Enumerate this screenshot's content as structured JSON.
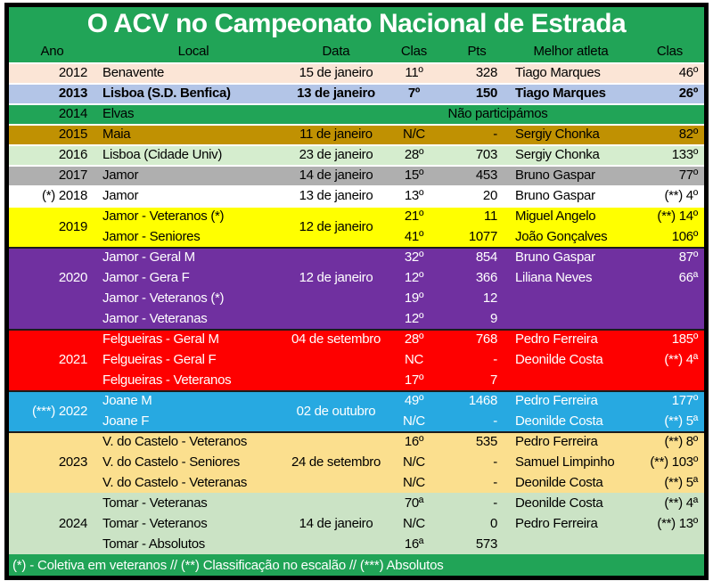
{
  "title": "O ACV no Campeonato Nacional de Estrada",
  "columns": [
    "Ano",
    "Local",
    "Data",
    "Clas",
    "Pts",
    "Melhor atleta",
    "Clas"
  ],
  "footer": "(*) - Coletiva em veteranos // (**) Classificação no escalão // (***) Absolutos",
  "colors": {
    "frame_border": "#000000",
    "band_green": "#21A457",
    "title_text": "#FFFFFF",
    "header_text": "#000000",
    "separator_light": "#FFFFFF",
    "separator_dark": "#1C1C1C"
  },
  "blocks": [
    {
      "year": "2012",
      "bg": "#FBE5D6",
      "fg": "#000000",
      "bold": false,
      "sep": "#FFFFFF",
      "year_pos": 0,
      "date": "15 de janeiro",
      "date_pos": 0,
      "rows": [
        {
          "local": "Benavente",
          "clas": "11º",
          "pts": "328",
          "atleta": "Tiago Marques",
          "clas2": "46º"
        }
      ]
    },
    {
      "year": "2013",
      "bg": "#B3C5E7",
      "fg": "#000000",
      "bold": true,
      "sep": "#FFFFFF",
      "year_pos": 0,
      "date": "13 de janeiro",
      "date_pos": 0,
      "rows": [
        {
          "local": "Lisboa (S.D. Benfica)",
          "clas": "7º",
          "pts": "150",
          "atleta": "Tiago Marques",
          "clas2": "26º"
        }
      ]
    },
    {
      "year": "2014",
      "bg": "#21A457",
      "fg": "#000000",
      "bold": false,
      "sep": "#FFFFFF",
      "year_pos": 0,
      "date": "",
      "date_pos": 0,
      "note": "Não participámos",
      "rows": [
        {
          "local": "Elvas"
        }
      ]
    },
    {
      "year": "2015",
      "bg": "#C09102",
      "fg": "#000000",
      "bold": false,
      "sep": "#FFFFFF",
      "year_pos": 0,
      "date": "11 de janeiro",
      "date_pos": 0,
      "rows": [
        {
          "local": "Maia",
          "clas": "N/C",
          "pts": "-",
          "atleta": "Sergiy Chonka",
          "clas2": "82º"
        }
      ]
    },
    {
      "year": "2016",
      "bg": "#D5EDCE",
      "fg": "#000000",
      "bold": false,
      "sep": "#FFFFFF",
      "year_pos": 0,
      "date": "23 de janeiro",
      "date_pos": 0,
      "rows": [
        {
          "local": "Lisboa (Cidade Univ)",
          "clas": "28º",
          "pts": "703",
          "atleta": "Sergiy Chonka",
          "clas2": "133º"
        }
      ]
    },
    {
      "year": "2017",
      "bg": "#AFAFAF",
      "fg": "#000000",
      "bold": false,
      "sep": "#FFFFFF",
      "year_pos": 0,
      "date": "14 de janeiro",
      "date_pos": 0,
      "rows": [
        {
          "local": "Jamor",
          "clas": "15º",
          "pts": "453",
          "atleta": "Bruno Gaspar",
          "clas2": "77º"
        }
      ]
    },
    {
      "year": "(*) 2018",
      "bg": "#FFFFFF",
      "fg": "#000000",
      "bold": false,
      "sep": "#FFFFFF",
      "year_pos": 0,
      "date": "13 de janeiro",
      "date_pos": 0,
      "rows": [
        {
          "local": "Jamor",
          "clas": "13º",
          "pts": "20",
          "atleta": "Bruno Gaspar",
          "clas2": "(**) 4º"
        }
      ]
    },
    {
      "year": "2019",
      "bg": "#FFFF00",
      "fg": "#000000",
      "bold": false,
      "sep": "#FFFFFF",
      "year_pos": "center",
      "date": "12 de janeiro",
      "date_pos": "center",
      "rows": [
        {
          "local": "Jamor - Veteranos (*)",
          "clas": "21º",
          "pts": "11",
          "atleta": "Miguel Angelo",
          "clas2": "(**) 14º"
        },
        {
          "local": "Jamor - Seniores",
          "clas": "41º",
          "pts": "1077",
          "atleta": "João Gonçalves",
          "clas2": "106º"
        }
      ]
    },
    {
      "year": "2020",
      "bg": "#7030A0",
      "fg": "#FFFFFF",
      "bold": false,
      "sep": "#1C1C1C",
      "year_pos": 1,
      "date": "12 de janeiro",
      "date_pos": 1,
      "rows": [
        {
          "local": "Jamor - Geral M",
          "clas": "32º",
          "pts": "854",
          "atleta": "Bruno Gaspar",
          "clas2": "87º"
        },
        {
          "local": "Jamor - Gera F",
          "clas": "12º",
          "pts": "366",
          "atleta": "Liliana Neves",
          "clas2": "66ª"
        },
        {
          "local": "Jamor - Veteranos (*)",
          "clas": "19º",
          "pts": "12"
        },
        {
          "local": "Jamor - Veteranas",
          "clas": "12º",
          "pts": "9"
        }
      ]
    },
    {
      "year": "2021",
      "bg": "#FE0000",
      "fg": "#FFFFFF",
      "bold": false,
      "sep": "#1C1C1C",
      "year_pos": 1,
      "date": "04 de setembro",
      "date_pos": 0,
      "rows": [
        {
          "local": "Felgueiras - Geral M",
          "clas": "28º",
          "pts": "768",
          "atleta": "Pedro Ferreira",
          "clas2": "185º"
        },
        {
          "local": "Felgueiras - Geral F",
          "clas": "NC",
          "pts": "-",
          "atleta": "Deonilde Costa",
          "clas2": "(**) 4ª"
        },
        {
          "local": "Felgueiras - Veteranos",
          "clas": "17º",
          "pts": "7"
        }
      ]
    },
    {
      "year": "(***) 2022",
      "bg": "#27A9E1",
      "fg": "#FFFFFF",
      "bold": false,
      "sep": "#1C1C1C",
      "year_pos": "center",
      "date": "02 de outubro",
      "date_pos": "center",
      "rows": [
        {
          "local": "Joane M",
          "clas": "49º",
          "pts": "1468",
          "atleta": "Pedro Ferreira",
          "clas2": "177º"
        },
        {
          "local": "Joane F",
          "clas": "N/C",
          "pts": "-",
          "atleta": "Deonilde Costa",
          "clas2": "(**) 5ª"
        }
      ]
    },
    {
      "year": "2023",
      "bg": "#FBDF8E",
      "fg": "#000000",
      "bold": false,
      "sep": "#1C1C1C",
      "year_pos": 1,
      "date": "24 de setembro",
      "date_pos": 1,
      "rows": [
        {
          "local": "V. do Castelo - Veteranos",
          "clas": "16º",
          "pts": "535",
          "atleta": "Pedro Ferreira",
          "clas2": "(**) 8º"
        },
        {
          "local": "V. do Castelo - Seniores",
          "clas": "N/C",
          "pts": "-",
          "atleta": "Samuel Limpinho",
          "clas2": "(**) 103º"
        },
        {
          "local": "V. do Castelo - Veteranas",
          "clas": "N/C",
          "pts": "-",
          "atleta": "Deonilde Costa",
          "clas2": "(**) 5ª"
        }
      ]
    },
    {
      "year": "2024",
      "bg": "#CBE3C5",
      "fg": "#000000",
      "bold": false,
      "sep": null,
      "year_pos": 1,
      "date": "14 de janeiro",
      "date_pos": 1,
      "rows": [
        {
          "local": "Tomar - Veteranas",
          "clas": "70ª",
          "pts": "-",
          "atleta": "Deonilde Costa",
          "clas2": "(**) 4ª"
        },
        {
          "local": "Tomar - Veteranos",
          "clas": "N/C",
          "pts": "0",
          "atleta": "Pedro Ferreira",
          "clas2": "(**) 13º"
        },
        {
          "local": "Tomar - Absolutos",
          "clas": "16ª",
          "pts": "573"
        }
      ]
    }
  ]
}
